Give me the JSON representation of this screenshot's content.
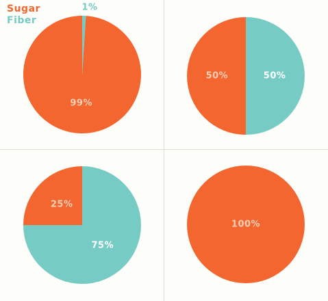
{
  "colors": {
    "sugar": "#f4662f",
    "fiber": "#76cbc5",
    "label_on_sugar": "#fbd0b5",
    "label_on_fiber": "#ffffff"
  },
  "legend": {
    "sugar_label": "Sugar",
    "fiber_label": "Fiber"
  },
  "chart_data": [
    {
      "type": "pie",
      "categories": [
        "Sugar",
        "Fiber"
      ],
      "values": [
        99,
        1
      ],
      "labels": [
        "99%",
        "1%"
      ]
    },
    {
      "type": "pie",
      "categories": [
        "Sugar",
        "Fiber"
      ],
      "values": [
        50,
        50
      ],
      "labels": [
        "50%",
        "50%"
      ]
    },
    {
      "type": "pie",
      "categories": [
        "Sugar",
        "Fiber"
      ],
      "values": [
        25,
        75
      ],
      "labels": [
        "25%",
        "75%"
      ]
    },
    {
      "type": "pie",
      "categories": [
        "Sugar",
        "Fiber"
      ],
      "values": [
        100,
        0
      ],
      "labels": [
        "100%",
        ""
      ]
    }
  ]
}
